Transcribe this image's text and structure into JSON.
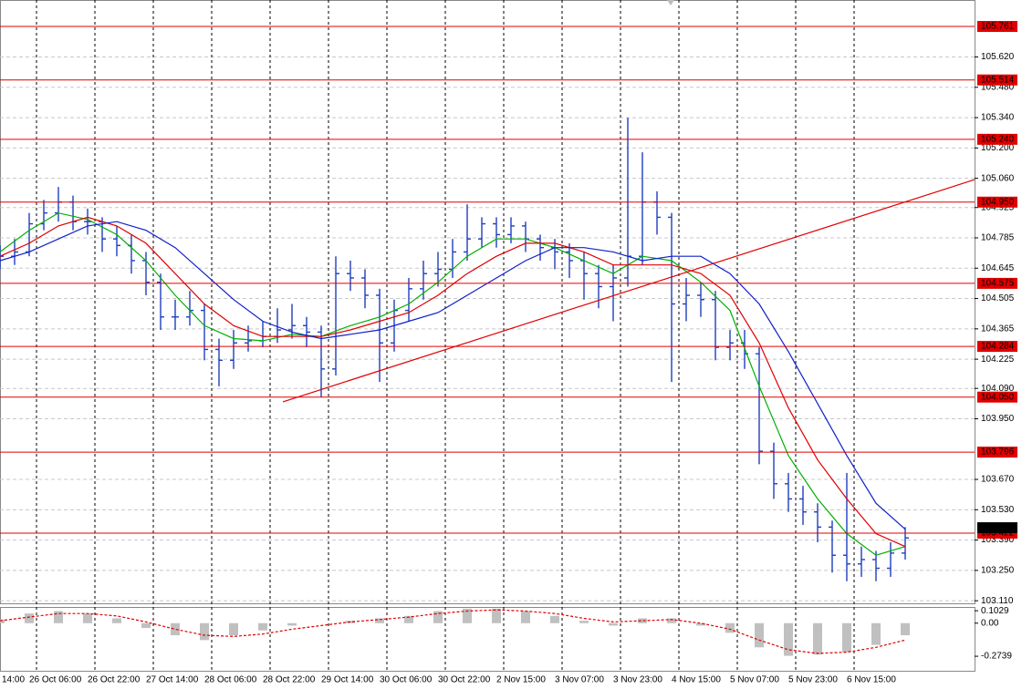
{
  "chart_data": {
    "type": "ohlc",
    "color": "#1f3fbf",
    "x": [
      0,
      4,
      8,
      12,
      16,
      20,
      24,
      28,
      32,
      36,
      40,
      44,
      48,
      52,
      56,
      60,
      64,
      68,
      72,
      76,
      80,
      84,
      88,
      92,
      96,
      100,
      104,
      108,
      112,
      116,
      120,
      124,
      128,
      132,
      136,
      140,
      144,
      148,
      152,
      156,
      160,
      164,
      168,
      172,
      176,
      180,
      184,
      188,
      192,
      196,
      200,
      204,
      208,
      212,
      216,
      220,
      224,
      228,
      232,
      236,
      240,
      244,
      248
    ],
    "open": [
      104.68,
      104.7,
      104.72,
      104.85,
      104.9,
      104.95,
      104.86,
      104.86,
      104.78,
      104.75,
      104.68,
      104.58,
      104.42,
      104.42,
      104.45,
      104.27,
      104.22,
      104.3,
      104.31,
      104.33,
      104.36,
      104.38,
      104.35,
      104.18,
      104.62,
      104.6,
      104.52,
      104.3,
      104.45,
      104.55,
      104.62,
      104.64,
      104.72,
      104.78,
      104.85,
      104.8,
      104.84,
      104.78,
      104.74,
      104.72,
      104.68,
      104.62,
      104.56,
      104.6,
      104.7,
      104.95,
      104.88,
      104.48,
      104.52,
      104.5,
      104.28,
      104.3,
      104.25,
      103.8,
      103.65,
      103.58,
      103.52,
      103.45,
      103.32,
      103.28,
      103.3,
      103.26,
      103.33
    ],
    "high": [
      104.75,
      104.78,
      104.9,
      104.96,
      105.02,
      104.98,
      104.92,
      104.88,
      104.84,
      104.8,
      104.72,
      104.62,
      104.5,
      104.54,
      104.48,
      104.32,
      104.36,
      104.38,
      104.4,
      104.46,
      104.48,
      104.42,
      104.38,
      104.7,
      104.68,
      104.64,
      104.55,
      104.5,
      104.6,
      104.68,
      104.72,
      104.78,
      104.94,
      104.88,
      104.88,
      104.88,
      104.86,
      104.8,
      104.78,
      104.76,
      104.72,
      104.66,
      104.66,
      105.34,
      105.18,
      105.0,
      104.9,
      104.6,
      104.58,
      104.54,
      104.36,
      104.36,
      104.28,
      103.84,
      103.7,
      103.64,
      103.56,
      103.48,
      103.7,
      103.36,
      103.34,
      103.38,
      103.45
    ],
    "low": [
      104.64,
      104.66,
      104.7,
      104.82,
      104.86,
      104.82,
      104.8,
      104.72,
      104.7,
      104.62,
      104.52,
      104.36,
      104.36,
      104.38,
      104.22,
      104.1,
      104.18,
      104.26,
      104.28,
      104.3,
      104.32,
      104.28,
      104.05,
      104.15,
      104.54,
      104.46,
      104.12,
      104.26,
      104.4,
      104.5,
      104.56,
      104.6,
      104.68,
      104.74,
      104.74,
      104.76,
      104.72,
      104.68,
      104.64,
      104.6,
      104.5,
      104.46,
      104.4,
      104.56,
      104.66,
      104.8,
      104.12,
      104.4,
      104.42,
      104.22,
      104.22,
      104.18,
      103.74,
      103.58,
      103.52,
      103.46,
      103.38,
      103.24,
      103.2,
      103.22,
      103.2,
      103.22,
      103.3
    ],
    "close": [
      104.7,
      104.72,
      104.85,
      104.9,
      104.95,
      104.86,
      104.86,
      104.78,
      104.75,
      104.68,
      104.58,
      104.42,
      104.42,
      104.45,
      104.27,
      104.22,
      104.3,
      104.31,
      104.33,
      104.36,
      104.38,
      104.35,
      104.18,
      104.62,
      104.6,
      104.52,
      104.3,
      104.45,
      104.55,
      104.62,
      104.64,
      104.72,
      104.78,
      104.85,
      104.8,
      104.84,
      104.78,
      104.74,
      104.72,
      104.68,
      104.62,
      104.56,
      104.6,
      104.7,
      104.95,
      104.88,
      104.48,
      104.52,
      104.5,
      104.28,
      104.3,
      104.25,
      103.8,
      103.65,
      103.58,
      103.52,
      103.45,
      103.32,
      103.28,
      103.3,
      103.26,
      103.33,
      103.4
    ],
    "xlim": [
      0,
      267
    ],
    "xticks": [
      {
        "value": -6,
        "label": "14:00"
      },
      {
        "value": 10,
        "label": "26 Oct 06:00"
      },
      {
        "value": 26,
        "label": "26 Oct 22:00"
      },
      {
        "value": 42,
        "label": "27 Oct 14:00"
      },
      {
        "value": 58,
        "label": "28 Oct 06:00"
      },
      {
        "value": 74,
        "label": "28 Oct 22:00"
      },
      {
        "value": 90,
        "label": "29 Oct 14:00"
      },
      {
        "value": 106,
        "label": "30 Oct 06:00"
      },
      {
        "value": 122,
        "label": "30 Oct 22:00"
      },
      {
        "value": 138,
        "label": "2 Nov 15:00"
      },
      {
        "value": 154,
        "label": "3 Nov 07:00"
      },
      {
        "value": 170,
        "label": "3 Nov 23:00"
      },
      {
        "value": 186,
        "label": "4 Nov 15:00"
      },
      {
        "value": 202,
        "label": "5 Nov 07:00"
      },
      {
        "value": 218,
        "label": "5 Nov 23:00"
      },
      {
        "value": 234,
        "label": "6 Nov 15:00"
      }
    ],
    "ylim": [
      103.098,
      105.883
    ],
    "yticks": [
      {
        "value": 105.62,
        "label": "105.620"
      },
      {
        "value": 105.48,
        "label": "105.480"
      },
      {
        "value": 105.34,
        "label": "105.340"
      },
      {
        "value": 105.2,
        "label": "105.200"
      },
      {
        "value": 105.06,
        "label": "105.060"
      },
      104.925,
      104.785,
      104.645,
      104.505,
      104.365,
      104.225,
      {
        "value": 104.09,
        "label": "104.090"
      },
      {
        "value": 103.95,
        "label": "103.950"
      },
      {
        "value": 103.67,
        "label": "103.670"
      },
      {
        "value": 103.53,
        "label": "103.530"
      },
      {
        "value": 103.39,
        "label": "103.390"
      },
      {
        "value": 103.25,
        "label": "103.250"
      },
      {
        "value": 103.11,
        "label": "103.110"
      }
    ],
    "grid": true,
    "levels": {
      "color": "#e00000",
      "values": [
        105.761,
        105.514,
        {
          "value": 105.24,
          "label": "105.240"
        },
        {
          "value": 104.95,
          "label": "104.950"
        },
        104.575,
        104.284,
        {
          "value": 104.05,
          "label": "104.050"
        },
        103.796,
        103.422
      ]
    },
    "current_price": 103.447,
    "trendline": {
      "color": "#e00000",
      "x": [
        77.5,
        267
      ],
      "values": [
        104.028,
        105.054
      ]
    },
    "moving_averages": [
      {
        "color": "#00b000",
        "x": [
          0,
          8,
          16,
          24,
          32,
          40,
          48,
          56,
          64,
          72,
          80,
          88,
          96,
          104,
          112,
          120,
          128,
          136,
          144,
          152,
          160,
          168,
          176,
          184,
          192,
          200,
          208,
          216,
          224,
          232,
          240,
          248
        ],
        "values": [
          104.72,
          104.82,
          104.9,
          104.87,
          104.8,
          104.68,
          104.52,
          104.38,
          104.32,
          104.31,
          104.34,
          104.33,
          104.38,
          104.42,
          104.48,
          104.58,
          104.7,
          104.78,
          104.78,
          104.74,
          104.68,
          104.62,
          104.7,
          104.68,
          104.58,
          104.45,
          104.1,
          103.78,
          103.58,
          103.42,
          103.32,
          103.36
        ]
      },
      {
        "color": "#e00000",
        "x": [
          0,
          8,
          16,
          24,
          32,
          40,
          48,
          56,
          64,
          72,
          80,
          88,
          96,
          104,
          112,
          120,
          128,
          136,
          144,
          152,
          160,
          168,
          176,
          184,
          192,
          200,
          208,
          216,
          224,
          232,
          240,
          248
        ],
        "values": [
          104.7,
          104.76,
          104.84,
          104.88,
          104.84,
          104.76,
          104.62,
          104.48,
          104.38,
          104.33,
          104.33,
          104.33,
          104.36,
          104.4,
          104.44,
          104.52,
          104.62,
          104.7,
          104.76,
          104.76,
          104.72,
          104.66,
          104.66,
          104.66,
          104.62,
          104.52,
          104.3,
          104.0,
          103.76,
          103.58,
          103.42,
          103.36
        ]
      },
      {
        "color": "#1020c8",
        "x": [
          0,
          8,
          16,
          24,
          32,
          40,
          48,
          56,
          64,
          72,
          80,
          88,
          96,
          104,
          112,
          120,
          128,
          136,
          144,
          152,
          160,
          168,
          176,
          184,
          192,
          200,
          208,
          216,
          224,
          232,
          240,
          248
        ],
        "values": [
          104.68,
          104.72,
          104.78,
          104.84,
          104.86,
          104.82,
          104.74,
          104.62,
          104.5,
          104.4,
          104.35,
          104.32,
          104.34,
          104.36,
          104.4,
          104.44,
          104.52,
          104.6,
          104.68,
          104.74,
          104.74,
          104.72,
          104.68,
          104.7,
          104.7,
          104.62,
          104.48,
          104.26,
          104.02,
          103.78,
          103.56,
          103.44
        ]
      }
    ],
    "indicator": {
      "type": "macd",
      "x": [
        0,
        8,
        16,
        24,
        32,
        40,
        48,
        56,
        64,
        72,
        80,
        88,
        96,
        104,
        112,
        120,
        128,
        136,
        144,
        152,
        160,
        168,
        176,
        184,
        192,
        200,
        208,
        216,
        224,
        232,
        240,
        248
      ],
      "histogram": [
        0.03,
        0.08,
        0.1,
        0.08,
        0.04,
        -0.04,
        -0.1,
        -0.14,
        -0.1,
        -0.06,
        -0.02,
        0.0,
        0.02,
        0.04,
        0.06,
        0.1,
        0.12,
        0.12,
        0.1,
        0.06,
        0.02,
        -0.02,
        0.04,
        0.04,
        -0.02,
        -0.08,
        -0.2,
        -0.27,
        -0.26,
        -0.24,
        -0.18,
        -0.1
      ],
      "signal": [
        0.02,
        0.05,
        0.08,
        0.08,
        0.06,
        0.01,
        -0.05,
        -0.1,
        -0.11,
        -0.09,
        -0.05,
        -0.02,
        0.01,
        0.03,
        0.05,
        0.08,
        0.1,
        0.11,
        0.1,
        0.08,
        0.04,
        0.01,
        0.02,
        0.03,
        0.0,
        -0.05,
        -0.14,
        -0.22,
        -0.25,
        -0.24,
        -0.2,
        -0.14
      ],
      "histogram_color": "#c0c0c0",
      "signal_color": "#e00000",
      "ylim": [
        -0.394,
        0.134
      ],
      "yticks": [
        0.1029,
        {
          "value": 0,
          "label": "0.00"
        },
        -0.2739
      ]
    }
  }
}
